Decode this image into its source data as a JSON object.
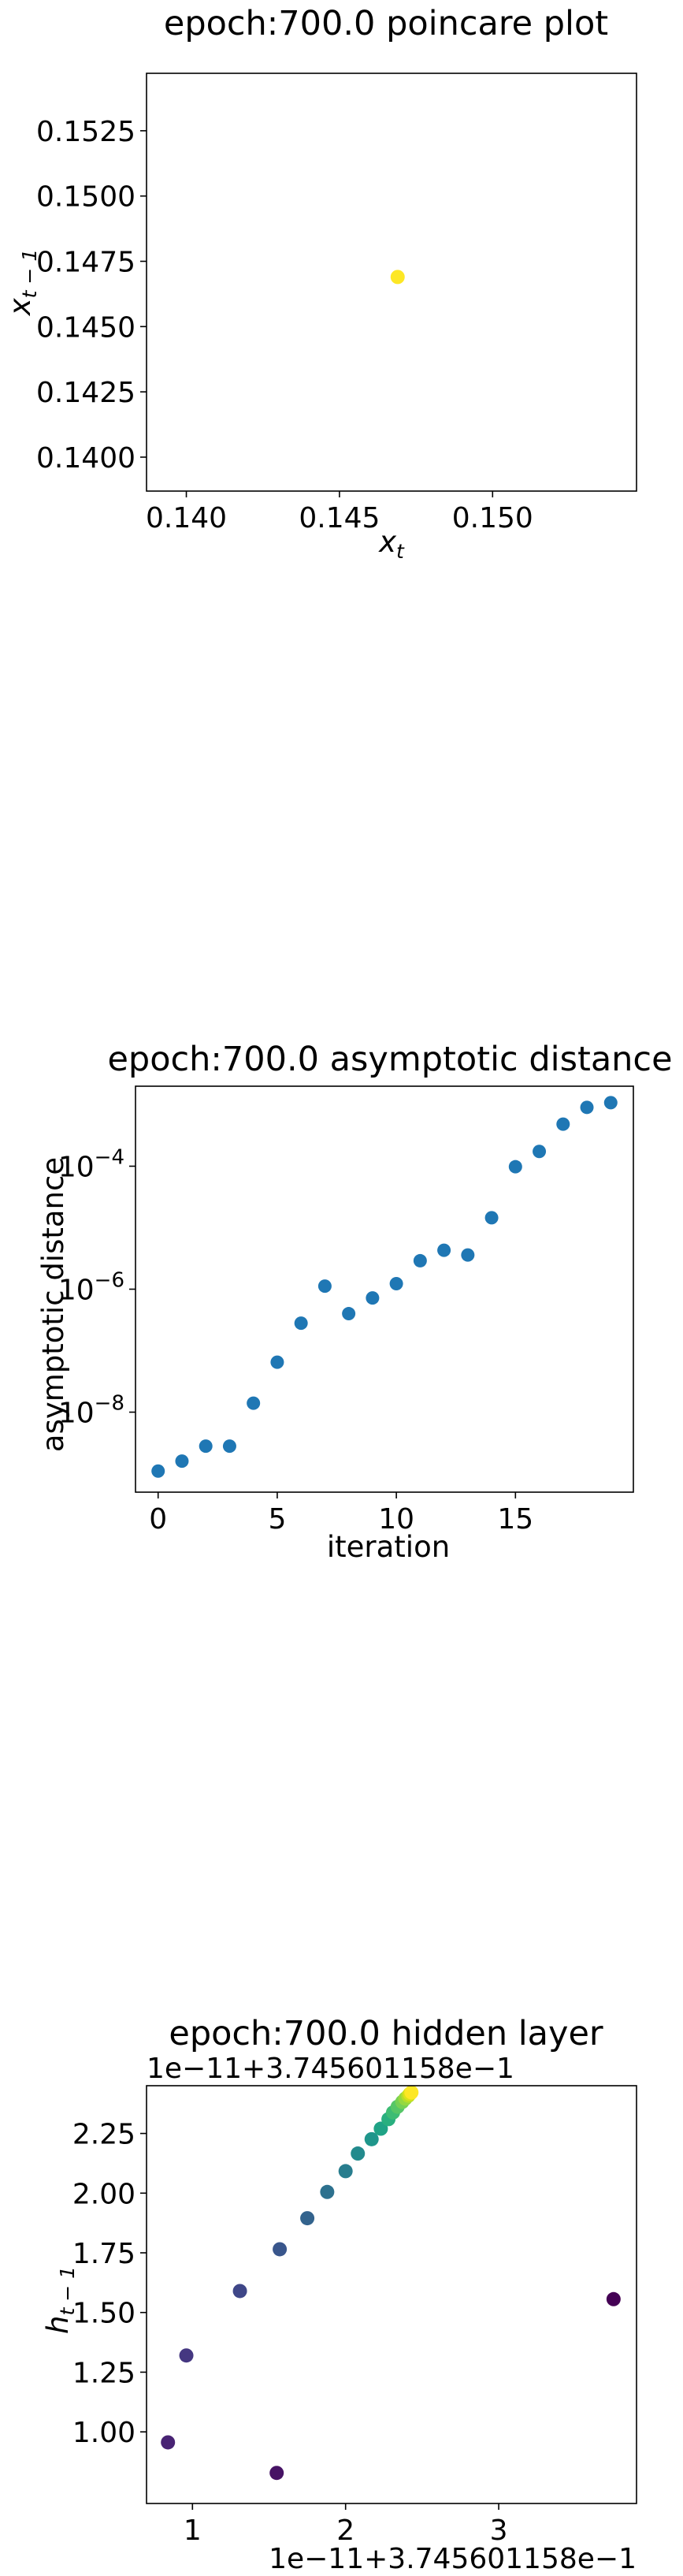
{
  "colors": {
    "scatter_blue": "#1f77b4",
    "frame": "#000000",
    "colormap": "viridis"
  },
  "chart_data": [
    {
      "type": "scatter",
      "title": "epoch:700.0 poincare plot",
      "xlabel": "x_t",
      "ylabel": "x_{t-1}",
      "xlim": [
        0.1387,
        0.1547
      ],
      "ylim": [
        0.1387,
        0.1547
      ],
      "xticks": [
        0.14,
        0.145,
        0.15
      ],
      "xtick_labels": [
        "0.140",
        "0.145",
        "0.150"
      ],
      "yticks": [
        0.14,
        0.1425,
        0.145,
        0.1475,
        0.15,
        0.1525
      ],
      "ytick_labels": [
        "0.1400",
        "0.1425",
        "0.1450",
        "0.1475",
        "0.1500",
        "0.1525"
      ],
      "points": [
        {
          "x": 0.1469,
          "y": 0.1469,
          "color": "#fde725"
        }
      ],
      "grid": false
    },
    {
      "type": "scatter",
      "title": "epoch:700.0 asymptotic distance",
      "xlabel": "iteration",
      "ylabel": "asymptotic distance",
      "yscale": "log",
      "xlim": [
        -0.95,
        19.95
      ],
      "ylim": [
        5e-10,
        0.002
      ],
      "xticks": [
        0,
        5,
        10,
        15
      ],
      "xtick_labels": [
        "0",
        "5",
        "10",
        "15"
      ],
      "yticks": [
        1e-08,
        1e-06,
        0.0001
      ],
      "ytick_labels": [
        {
          "base": "10",
          "exp": "−8"
        },
        {
          "base": "10",
          "exp": "−6"
        },
        {
          "base": "10",
          "exp": "−4"
        }
      ],
      "x": [
        0,
        1,
        2,
        3,
        4,
        5,
        6,
        7,
        8,
        9,
        10,
        11,
        12,
        13,
        14,
        15,
        16,
        17,
        18,
        19
      ],
      "y": [
        1.1e-09,
        1.6e-09,
        2.8e-09,
        2.8e-09,
        1.4e-08,
        6.5e-08,
        2.8e-07,
        1.12e-06,
        4e-07,
        7.2e-07,
        1.23e-06,
        2.9e-06,
        4.3e-06,
        3.6e-06,
        1.45e-05,
        9.8e-05,
        0.000174,
        0.000483,
        0.000906,
        0.00108
      ],
      "color": "#1f77b4",
      "grid": false
    },
    {
      "type": "scatter",
      "title": "epoch:700.0 hidden layer",
      "ylabel": "h_{t-1}",
      "x_offset_text": "1e−11+3.745601158e−1",
      "y_offset_text": "1e−11+3.745601158e−1",
      "xlim": [
        0.7,
        3.9
      ],
      "ylim": [
        0.7,
        2.45
      ],
      "xticks": [
        1,
        2,
        3
      ],
      "xtick_labels": [
        "1",
        "2",
        "3"
      ],
      "yticks": [
        1.0,
        1.25,
        1.5,
        1.75,
        2.0,
        2.25
      ],
      "ytick_labels": [
        "1.00",
        "1.25",
        "1.50",
        "1.75",
        "2.00",
        "2.25"
      ],
      "points": [
        {
          "x": 3.75,
          "y": 1.556,
          "color": "#440154"
        },
        {
          "x": 1.55,
          "y": 0.828,
          "color": "#471365"
        },
        {
          "x": 0.84,
          "y": 0.956,
          "color": "#482374"
        },
        {
          "x": 0.96,
          "y": 1.32,
          "color": "#453781"
        },
        {
          "x": 1.31,
          "y": 1.59,
          "color": "#3f4788"
        },
        {
          "x": 1.57,
          "y": 1.765,
          "color": "#39568c"
        },
        {
          "x": 1.75,
          "y": 1.895,
          "color": "#33638d"
        },
        {
          "x": 1.88,
          "y": 2.005,
          "color": "#2d718e"
        },
        {
          "x": 2.0,
          "y": 2.092,
          "color": "#287d8e"
        },
        {
          "x": 2.08,
          "y": 2.166,
          "color": "#238a8d"
        },
        {
          "x": 2.17,
          "y": 2.226,
          "color": "#1f968b"
        },
        {
          "x": 2.23,
          "y": 2.27,
          "color": "#20a386"
        },
        {
          "x": 2.28,
          "y": 2.31,
          "color": "#29af7f"
        },
        {
          "x": 2.31,
          "y": 2.338,
          "color": "#3dbc74"
        },
        {
          "x": 2.34,
          "y": 2.362,
          "color": "#56c667"
        },
        {
          "x": 2.37,
          "y": 2.382,
          "color": "#75d054"
        },
        {
          "x": 2.39,
          "y": 2.396,
          "color": "#95d840"
        },
        {
          "x": 2.41,
          "y": 2.408,
          "color": "#b8de29"
        },
        {
          "x": 2.42,
          "y": 2.416,
          "color": "#dae319"
        },
        {
          "x": 2.43,
          "y": 2.422,
          "color": "#fde725"
        }
      ],
      "grid": false
    }
  ]
}
